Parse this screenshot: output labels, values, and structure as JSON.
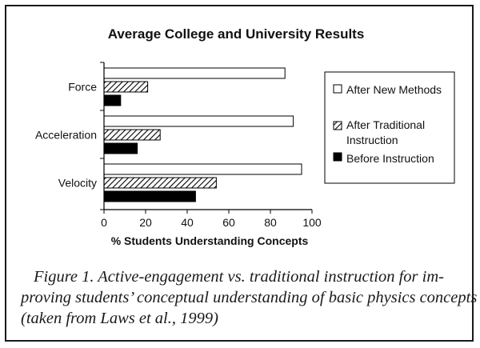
{
  "chart_data": {
    "type": "bar",
    "orientation": "horizontal",
    "title": "Average College and University Results",
    "xlabel": "% Students Understanding Concepts",
    "ylabel": "",
    "xlim": [
      0,
      100
    ],
    "xticks": [
      "0",
      "20",
      "40",
      "60",
      "80",
      "100"
    ],
    "xtick_values": [
      0,
      20,
      40,
      60,
      80,
      100
    ],
    "grid": false,
    "legend_position": "right",
    "categories": [
      "Force",
      "Acceleration",
      "Velocity"
    ],
    "series": [
      {
        "name": "After New Methods",
        "legend_lines": [
          "After New Methods"
        ],
        "fill": "white",
        "values": [
          87,
          91,
          95
        ]
      },
      {
        "name": "After Traditional Instruction",
        "legend_lines": [
          "After Traditional",
          "Instruction"
        ],
        "fill": "hatched",
        "values": [
          21,
          27,
          54
        ]
      },
      {
        "name": "Before Instruction",
        "legend_lines": [
          "Before Instruction"
        ],
        "fill": "black",
        "values": [
          8,
          16,
          44
        ]
      }
    ]
  },
  "caption": {
    "lines": [
      "Figure 1. Active-engagement vs. traditional instruction for im-",
      "proving students’ conceptual understanding of basic physics concepts",
      "(taken from Laws et al., 1999)"
    ]
  },
  "colors": {
    "bar_stroke": "#000000",
    "solid_fill": "#000000",
    "hatch_stroke": "#000000",
    "background": "#ffffff"
  }
}
